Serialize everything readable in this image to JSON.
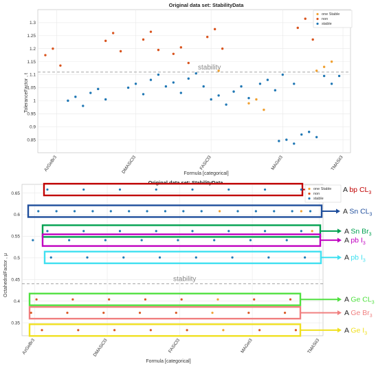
{
  "chart_data": [
    {
      "type": "scatter",
      "title": "Original data set: StabilityData",
      "xlabel": "Formula [categorical]",
      "ylabel": "ToleranceFactor , t",
      "ylim": [
        0.8,
        1.35
      ],
      "yticks": [
        0.85,
        0.9,
        0.95,
        1,
        1.05,
        1.1,
        1.15,
        1.2,
        1.25,
        1.3
      ],
      "categories": [
        "AzGeBr3",
        "DMASiCl3",
        "FASiCl3",
        "MAGeI3",
        "TMASiI3"
      ],
      "threshold": 1.11,
      "threshold_label": "stability",
      "legend": {
        "position": "top-right",
        "entries": [
          "one Stable",
          "non",
          "stable"
        ]
      },
      "grid": true,
      "series": [
        {
          "name": "one Stable",
          "color": "#f0a030",
          "points": [
            [
              4.8,
              1.115
            ],
            [
              5.6,
              0.99
            ],
            [
              5.8,
              1.005
            ],
            [
              6.0,
              0.965
            ],
            [
              7.4,
              1.115
            ],
            [
              7.6,
              1.13
            ],
            [
              7.8,
              1.15
            ]
          ]
        },
        {
          "name": "non",
          "color": "#d9541e",
          "points": [
            [
              0.2,
              1.175
            ],
            [
              0.4,
              1.2
            ],
            [
              0.6,
              1.135
            ],
            [
              1.8,
              1.23
            ],
            [
              2.0,
              1.26
            ],
            [
              2.2,
              1.19
            ],
            [
              2.8,
              1.235
            ],
            [
              3.0,
              1.265
            ],
            [
              3.2,
              1.195
            ],
            [
              3.6,
              1.18
            ],
            [
              3.8,
              1.205
            ],
            [
              4.0,
              1.145
            ],
            [
              4.5,
              1.245
            ],
            [
              4.7,
              1.275
            ],
            [
              4.9,
              1.2
            ],
            [
              6.9,
              1.28
            ],
            [
              7.1,
              1.315
            ],
            [
              7.3,
              1.235
            ]
          ]
        },
        {
          "name": "stable",
          "color": "#1f77b4",
          "points": [
            [
              0.8,
              1.0
            ],
            [
              1.0,
              1.015
            ],
            [
              1.2,
              0.98
            ],
            [
              1.4,
              1.03
            ],
            [
              1.6,
              1.045
            ],
            [
              1.8,
              1.005
            ],
            [
              2.4,
              1.05
            ],
            [
              2.6,
              1.065
            ],
            [
              2.8,
              1.025
            ],
            [
              3.0,
              1.08
            ],
            [
              3.2,
              1.1
            ],
            [
              3.4,
              1.055
            ],
            [
              3.6,
              1.07
            ],
            [
              3.8,
              1.03
            ],
            [
              4.0,
              1.085
            ],
            [
              4.2,
              1.105
            ],
            [
              4.4,
              1.055
            ],
            [
              4.6,
              1.005
            ],
            [
              4.8,
              1.02
            ],
            [
              5.0,
              0.985
            ],
            [
              5.2,
              1.035
            ],
            [
              5.4,
              1.055
            ],
            [
              5.6,
              1.01
            ],
            [
              5.9,
              1.065
            ],
            [
              6.1,
              1.08
            ],
            [
              6.3,
              1.04
            ],
            [
              6.5,
              1.1
            ],
            [
              6.8,
              1.065
            ],
            [
              6.4,
              0.845
            ],
            [
              6.6,
              0.85
            ],
            [
              6.8,
              0.835
            ],
            [
              7.0,
              0.87
            ],
            [
              7.2,
              0.88
            ],
            [
              7.4,
              0.86
            ],
            [
              7.6,
              1.095
            ],
            [
              7.8,
              1.065
            ],
            [
              8.0,
              1.095
            ]
          ]
        }
      ]
    },
    {
      "type": "scatter",
      "title": "Original data set: StabilityData",
      "xlabel": "Formula [categorical]",
      "ylabel": "OctahedralFactor , μ",
      "ylim": [
        0.32,
        0.67
      ],
      "yticks": [
        0.35,
        0.4,
        0.45,
        0.5,
        0.55,
        0.6,
        0.65
      ],
      "categories": [
        "AzGeBr3",
        "DMASiCl3",
        "FASiCl3",
        "MAGeI3",
        "TMASiI3"
      ],
      "threshold": 0.44,
      "threshold_label": "stability",
      "legend": {
        "position": "top-right",
        "entries": [
          "one Stable",
          "non",
          "stable"
        ]
      },
      "grid": true,
      "rows": [
        {
          "label_a": "A",
          "label_b": "bp CL",
          "subscript": "3",
          "color": "#c00000",
          "y": 0.658,
          "dot": "#1f77b4",
          "xs": [
            0.5,
            1.5,
            2.5,
            3.5,
            4.5,
            5.5,
            6.5,
            7.5
          ],
          "highlight": []
        },
        {
          "label_a": "A",
          "label_b": "Sn CL",
          "subscript": "3",
          "color": "#1f4e9c",
          "y": 0.608,
          "dot": "#1f77b4",
          "xs": [
            0.25,
            0.75,
            1.25,
            1.75,
            2.25,
            2.75,
            3.25,
            3.75,
            4.25,
            4.75,
            5.25,
            5.75,
            6.25,
            6.75,
            7.25,
            7.75
          ],
          "highlight": [
            5.25,
            7.5
          ]
        },
        {
          "label_a": "A",
          "label_b": "Sn Br",
          "subscript": "3",
          "color": "#00a050",
          "y": 0.562,
          "dot": "#1f77b4",
          "xs": [
            0.5,
            1.5,
            2.5,
            3.5,
            4.5,
            5.5,
            6.5,
            7.5
          ],
          "highlight": [
            7.8
          ]
        },
        {
          "label_a": "A",
          "label_b": "pb I",
          "subscript": "3",
          "color": "#c000c0",
          "y": 0.541,
          "dot": "#1f77b4",
          "xs": [
            0.1,
            1.1,
            2.1,
            3.1,
            4.1,
            5.1,
            6.1,
            7.1
          ],
          "highlight": []
        },
        {
          "label_a": "A",
          "label_b": "pb I",
          "subscript": "3",
          "color": "#40e0f0",
          "y": 0.501,
          "dot": "#1f77b4",
          "xs": [
            0.6,
            1.6,
            2.6,
            3.6,
            4.6,
            5.6,
            6.6,
            7.6
          ],
          "highlight": []
        },
        {
          "label_a": "A",
          "label_b": "Ge CL",
          "subscript": "3",
          "color": "#50e040",
          "y": 0.404,
          "dot": "#d9541e",
          "xs": [
            0.2,
            1.2,
            2.2,
            3.2,
            4.2,
            5.2,
            6.2,
            7.2
          ],
          "highlight": [
            5.2
          ]
        },
        {
          "label_a": "A",
          "label_b": "Ge Br",
          "subscript": "3",
          "color": "#f08080",
          "y": 0.373,
          "dot": "#d9541e",
          "xs": [
            0.05,
            1.05,
            2.05,
            3.05,
            4.05,
            5.05,
            6.05,
            7.05
          ],
          "highlight": [
            5.05
          ]
        },
        {
          "label_a": "A",
          "label_b": "Ge I",
          "subscript": "3",
          "color": "#f0e020",
          "y": 0.333,
          "dot": "#d9541e",
          "xs": [
            0.35,
            1.35,
            2.35,
            3.35,
            4.35,
            5.35,
            6.35,
            7.35
          ],
          "highlight": [
            5.35
          ]
        }
      ]
    }
  ]
}
